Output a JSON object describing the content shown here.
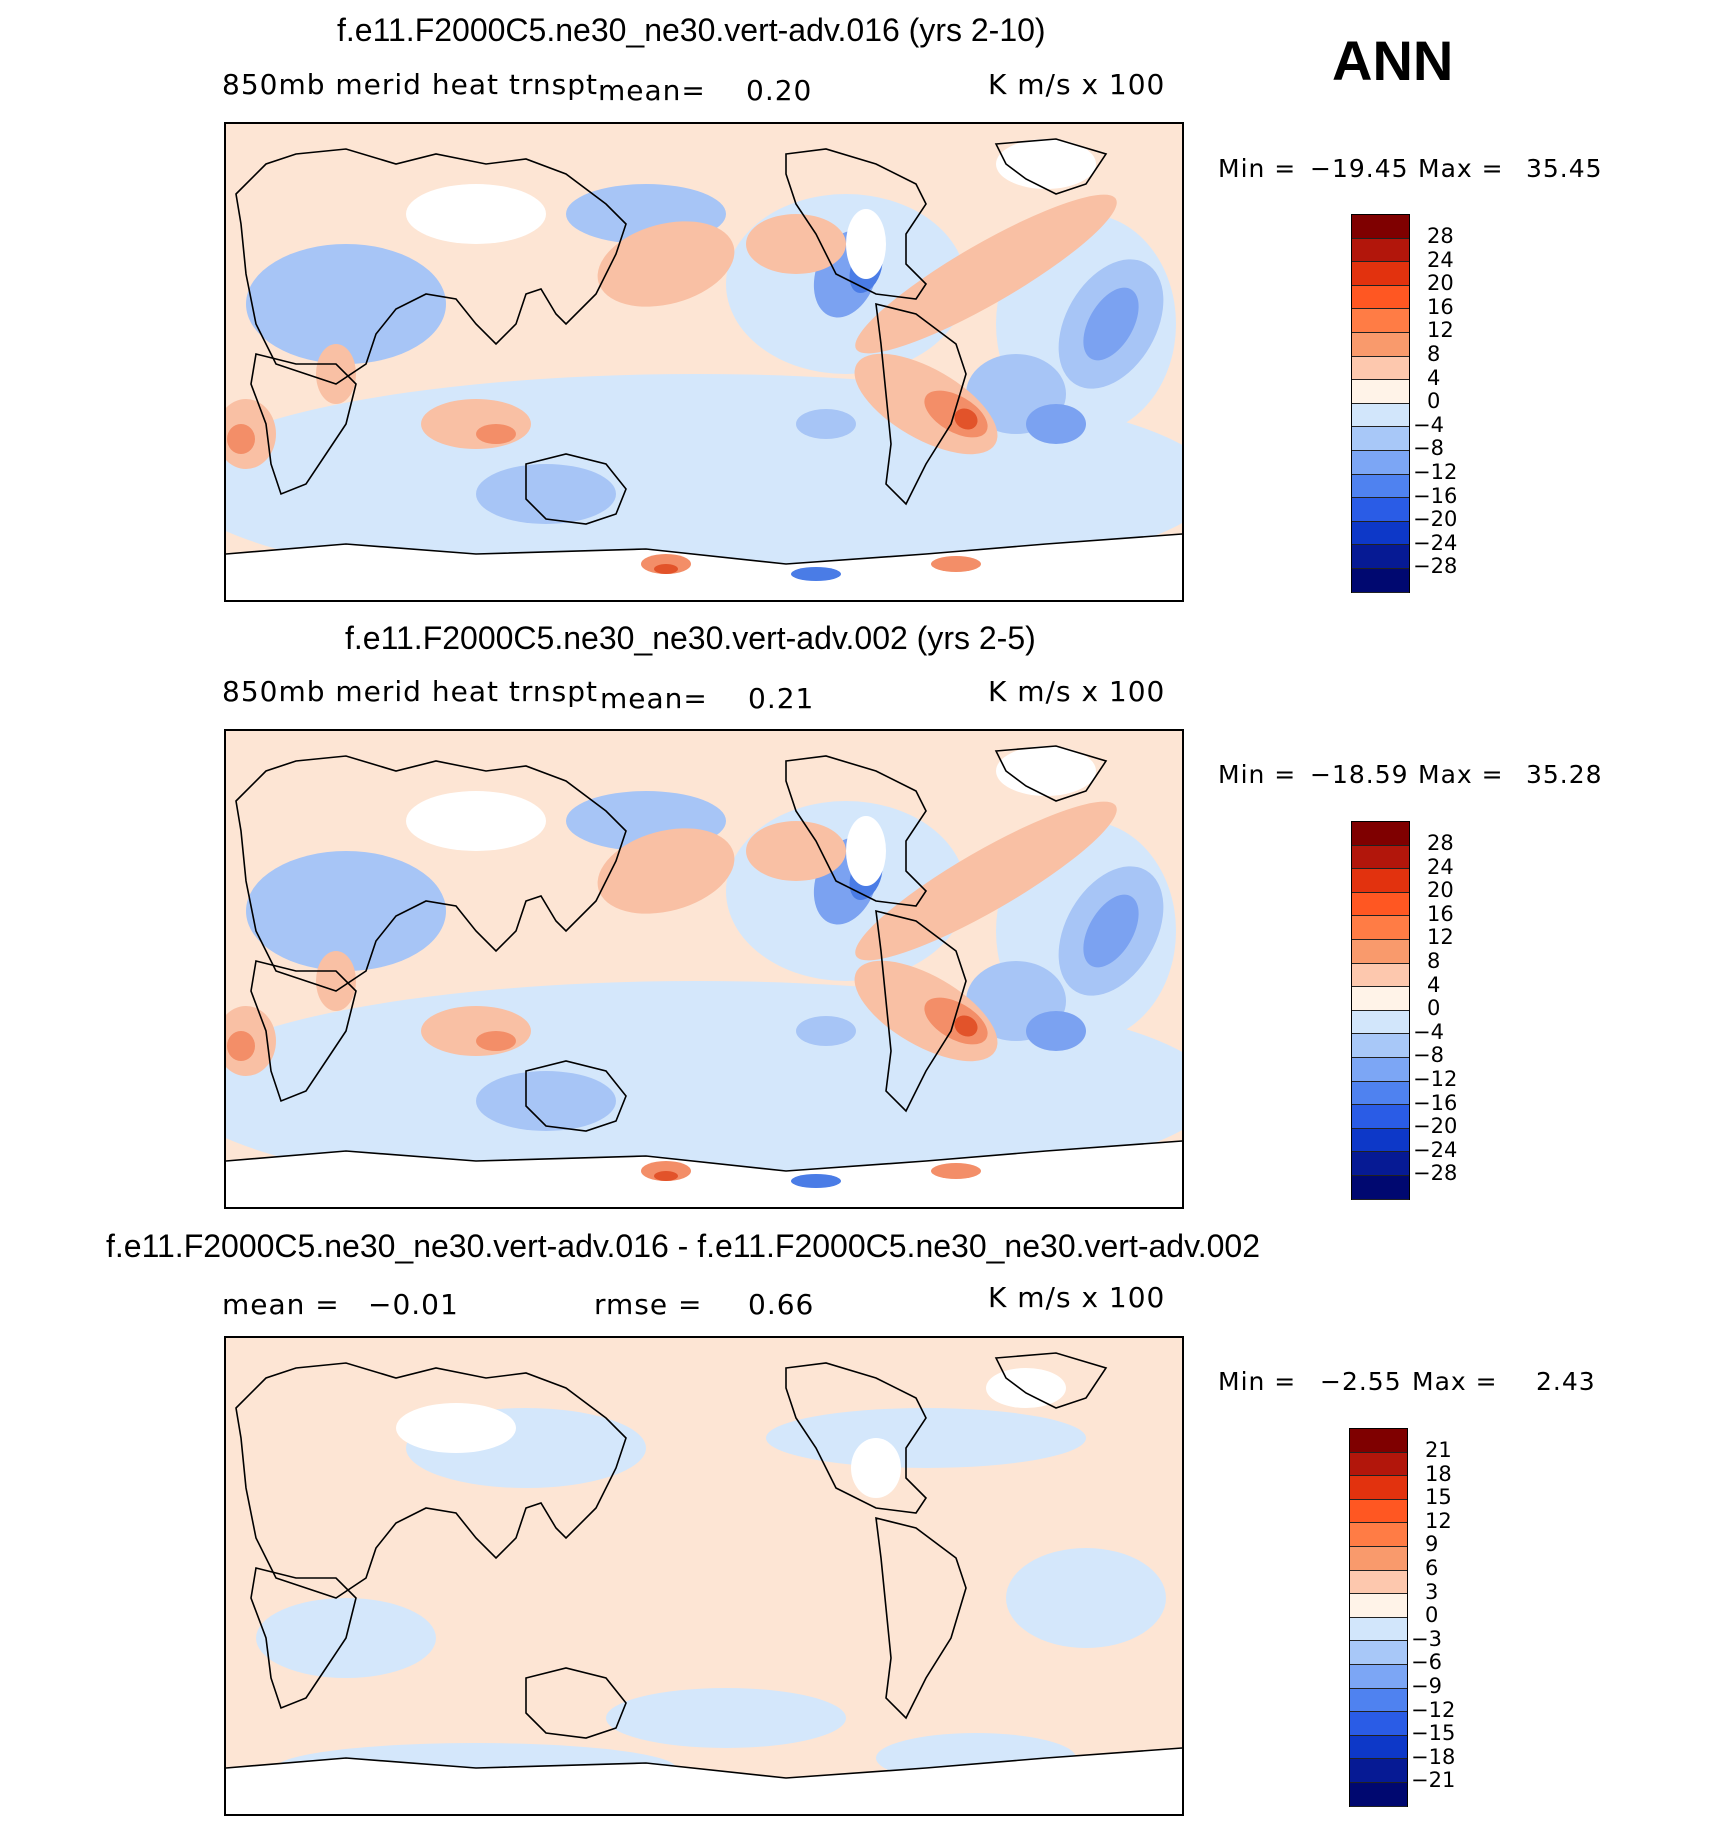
{
  "header": {
    "season": "ANN"
  },
  "panels": [
    {
      "title": "f.e11.F2000C5.ne30_ne30.vert-adv.016 (yrs 2-10)",
      "variable": "850mb merid heat trnspt",
      "mean_label": "mean=",
      "mean_value": "0.20",
      "units": "K m/s x 100",
      "min_label": "Min =",
      "min_value": "−19.45",
      "max_label": "Max =",
      "max_value": "35.45",
      "colorbar_ticks": [
        "28",
        "24",
        "20",
        "16",
        "12",
        "8",
        "4",
        "0",
        "−4",
        "−8",
        "−12",
        "−16",
        "−20",
        "−24",
        "−28"
      ]
    },
    {
      "title": "f.e11.F2000C5.ne30_ne30.vert-adv.002 (yrs 2-5)",
      "variable": "850mb merid heat trnspt",
      "mean_label": "mean=",
      "mean_value": "0.21",
      "units": "K m/s x 100",
      "min_label": "Min =",
      "min_value": "−18.59",
      "max_label": "Max =",
      "max_value": "35.28",
      "colorbar_ticks": [
        "28",
        "24",
        "20",
        "16",
        "12",
        "8",
        "4",
        "0",
        "−4",
        "−8",
        "−12",
        "−16",
        "−20",
        "−24",
        "−28"
      ]
    },
    {
      "title": "f.e11.F2000C5.ne30_ne30.vert-adv.016 - f.e11.F2000C5.ne30_ne30.vert-adv.002",
      "mean_label": "mean =",
      "mean_value": "−0.01",
      "rmse_label": "rmse =",
      "rmse_value": "0.66",
      "units": "K m/s x 100",
      "min_label": "Min =",
      "min_value": "−2.55",
      "max_label": "Max =",
      "max_value": "2.43",
      "colorbar_ticks": [
        "21",
        "18",
        "15",
        "12",
        "9",
        "6",
        "3",
        "0",
        "−3",
        "−6",
        "−9",
        "−12",
        "−15",
        "−18",
        "−21"
      ]
    }
  ],
  "colorbar_colors": [
    "#7f0000",
    "#b2160b",
    "#e2320e",
    "#ff5722",
    "#ff7c45",
    "#f99a6c",
    "#fdc8ae",
    "#fff3e8",
    "#d2e6fb",
    "#a8c8f8",
    "#7ca6f5",
    "#4f82f0",
    "#2a5ce6",
    "#0d38c8",
    "#061a94",
    "#000870"
  ],
  "map_colors": {
    "ocean_base": "#fde5d4",
    "light_blue": "#d4e7fb",
    "mid_blue": "#a7c5f6",
    "blue": "#7ba2f1",
    "deep_blue": "#4a7ce6",
    "light_red": "#f9c0a4",
    "red": "#f38e68",
    "deep_red": "#e2532a",
    "white": "#ffffff"
  }
}
